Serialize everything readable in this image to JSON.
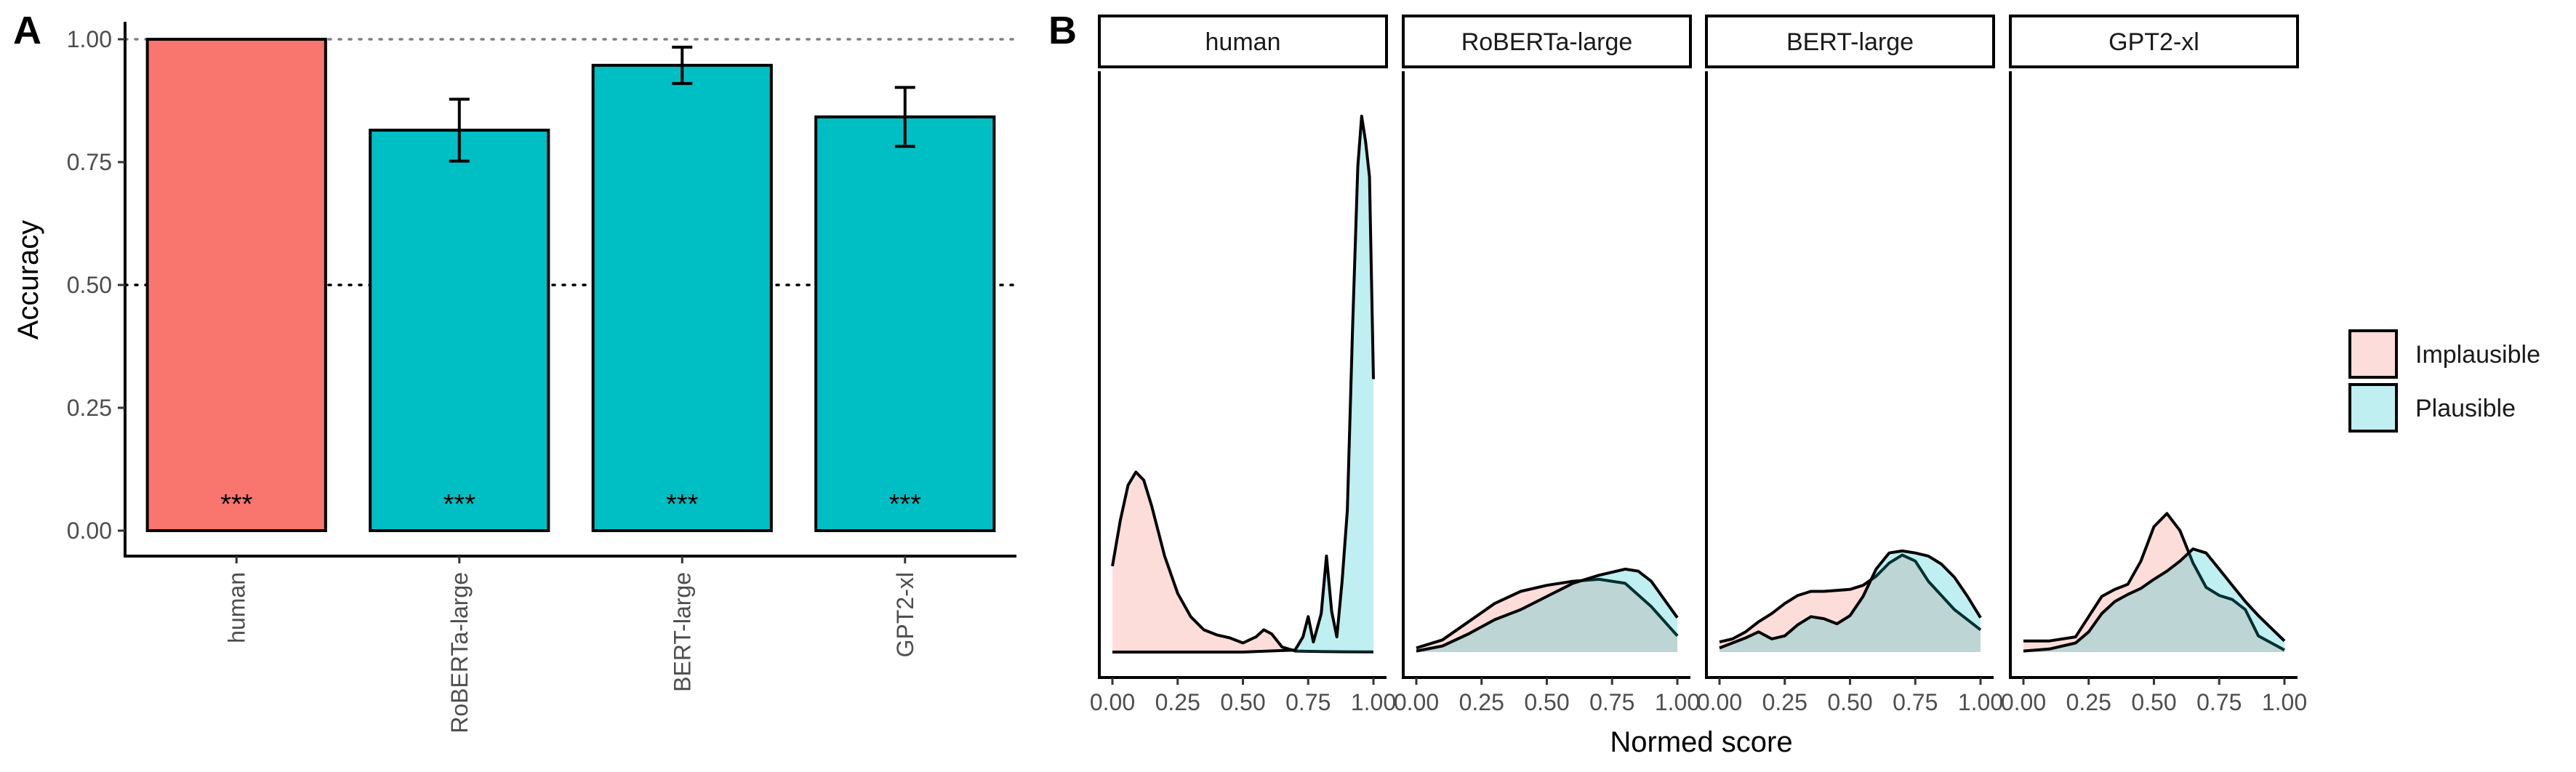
{
  "chart_data": [
    {
      "panel": "A",
      "type": "bar",
      "categories": [
        "human",
        "RoBERTa-large",
        "BERT-large",
        "GPT2-xl"
      ],
      "values": [
        1.0,
        0.815,
        0.947,
        0.842
      ],
      "error_low": [
        1.0,
        0.752,
        0.91,
        0.782
      ],
      "error_high": [
        1.0,
        0.878,
        0.984,
        0.902
      ],
      "colors": [
        "#F8766D",
        "#00BFC4",
        "#00BFC4",
        "#00BFC4"
      ],
      "annotations": [
        "***",
        "***",
        "***",
        "***"
      ],
      "reference_lines": [
        1.0,
        0.5
      ],
      "ylabel": "Accuracy",
      "xlabel": "",
      "ylim": [
        0,
        1
      ],
      "yticks": [
        "0.00",
        "0.25",
        "0.50",
        "0.75",
        "1.00"
      ],
      "tick_values": [
        0,
        0.25,
        0.5,
        0.75,
        1.0
      ],
      "grid": false
    },
    {
      "panel": "B",
      "type": "area",
      "xlabel": "Normed score",
      "ylabel": "",
      "xlim": [
        0,
        1
      ],
      "xticks": [
        "0.00",
        "0.25",
        "0.50",
        "0.75",
        "1.00"
      ],
      "tick_values": [
        0,
        0.25,
        0.5,
        0.75,
        1.0
      ],
      "ymax": 5.5,
      "grid": false,
      "legend": {
        "position": "right",
        "entries": [
          {
            "label": "Implausible",
            "color": "#F8766D"
          },
          {
            "label": "Plausible",
            "color": "#00BFC4"
          }
        ]
      },
      "facets": [
        {
          "name": "human",
          "series": [
            {
              "name": "Implausible",
              "x": [
                0,
                0.03,
                0.06,
                0.09,
                0.12,
                0.15,
                0.2,
                0.25,
                0.3,
                0.35,
                0.4,
                0.45,
                0.5,
                0.55,
                0.58,
                0.61,
                0.65,
                0.7,
                0.8,
                0.9,
                1.0
              ],
              "y": [
                0.85,
                1.3,
                1.65,
                1.78,
                1.7,
                1.45,
                0.95,
                0.58,
                0.35,
                0.22,
                0.17,
                0.14,
                0.09,
                0.15,
                0.22,
                0.18,
                0.05,
                0.01,
                0.005,
                0.003,
                0.002
              ]
            },
            {
              "name": "Plausible",
              "x": [
                0,
                0.5,
                0.7,
                0.73,
                0.75,
                0.77,
                0.8,
                0.82,
                0.84,
                0.86,
                0.88,
                0.9,
                0.92,
                0.94,
                0.955,
                0.97,
                0.985,
                1.0
              ],
              "y": [
                0,
                0,
                0.02,
                0.15,
                0.35,
                0.1,
                0.38,
                0.95,
                0.4,
                0.15,
                0.7,
                1.4,
                3.2,
                4.8,
                5.3,
                5.05,
                4.7,
                2.7
              ]
            }
          ]
        },
        {
          "name": "RoBERTa-large",
          "series": [
            {
              "name": "Implausible",
              "x": [
                0,
                0.1,
                0.2,
                0.3,
                0.4,
                0.5,
                0.6,
                0.7,
                0.8,
                0.9,
                1.0
              ],
              "y": [
                0.04,
                0.12,
                0.3,
                0.48,
                0.6,
                0.66,
                0.7,
                0.72,
                0.68,
                0.45,
                0.16
              ]
            },
            {
              "name": "Plausible",
              "x": [
                0,
                0.1,
                0.2,
                0.3,
                0.4,
                0.5,
                0.6,
                0.7,
                0.8,
                0.85,
                0.9,
                1.0
              ],
              "y": [
                0.01,
                0.06,
                0.18,
                0.32,
                0.42,
                0.55,
                0.68,
                0.76,
                0.82,
                0.8,
                0.7,
                0.34
              ]
            }
          ]
        },
        {
          "name": "BERT-large",
          "series": [
            {
              "name": "Implausible",
              "x": [
                0,
                0.05,
                0.1,
                0.15,
                0.2,
                0.25,
                0.3,
                0.35,
                0.4,
                0.5,
                0.55,
                0.6,
                0.65,
                0.7,
                0.75,
                0.8,
                0.9,
                1.0
              ],
              "y": [
                0.1,
                0.13,
                0.2,
                0.3,
                0.38,
                0.48,
                0.56,
                0.6,
                0.6,
                0.62,
                0.66,
                0.75,
                0.88,
                0.96,
                0.9,
                0.7,
                0.42,
                0.22
              ]
            },
            {
              "name": "Plausible",
              "x": [
                0,
                0.1,
                0.15,
                0.2,
                0.25,
                0.3,
                0.35,
                0.4,
                0.45,
                0.5,
                0.55,
                0.6,
                0.65,
                0.7,
                0.75,
                0.8,
                0.85,
                0.9,
                0.95,
                1.0
              ],
              "y": [
                0.04,
                0.14,
                0.2,
                0.13,
                0.16,
                0.27,
                0.35,
                0.33,
                0.28,
                0.36,
                0.55,
                0.82,
                0.98,
                1.0,
                0.98,
                0.95,
                0.87,
                0.74,
                0.55,
                0.34
              ]
            }
          ]
        },
        {
          "name": "GPT2-xl",
          "series": [
            {
              "name": "Implausible",
              "x": [
                0,
                0.1,
                0.2,
                0.3,
                0.35,
                0.4,
                0.45,
                0.5,
                0.55,
                0.6,
                0.65,
                0.7,
                0.75,
                0.8,
                0.85,
                0.9,
                1.0
              ],
              "y": [
                0.11,
                0.11,
                0.15,
                0.55,
                0.62,
                0.67,
                0.9,
                1.24,
                1.37,
                1.2,
                0.88,
                0.64,
                0.56,
                0.52,
                0.42,
                0.16,
                0.02
              ]
            },
            {
              "name": "Plausible",
              "x": [
                0,
                0.1,
                0.2,
                0.25,
                0.3,
                0.35,
                0.4,
                0.45,
                0.5,
                0.55,
                0.6,
                0.65,
                0.7,
                0.75,
                0.8,
                0.85,
                0.9,
                1.0
              ],
              "y": [
                0.01,
                0.03,
                0.09,
                0.2,
                0.38,
                0.5,
                0.57,
                0.63,
                0.72,
                0.8,
                0.9,
                1.02,
                0.98,
                0.82,
                0.66,
                0.5,
                0.36,
                0.11
              ]
            }
          ]
        }
      ]
    }
  ]
}
